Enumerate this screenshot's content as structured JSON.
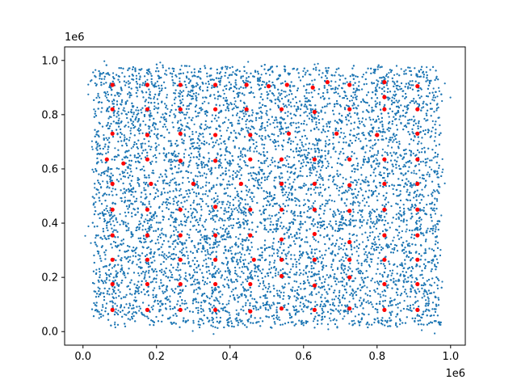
{
  "chart_data": {
    "type": "scatter",
    "title": "",
    "xlabel": "",
    "ylabel": "",
    "xlim": [
      -50000,
      1040000
    ],
    "ylim": [
      -50000,
      1050000
    ],
    "x_offset_text": "1e6",
    "y_offset_text": "1e6",
    "x_ticks": [
      0,
      200000,
      400000,
      600000,
      800000,
      1000000
    ],
    "x_tick_labels": [
      "0.0",
      "0.2",
      "0.4",
      "0.6",
      "0.8",
      "1.0"
    ],
    "y_ticks": [
      0,
      200000,
      400000,
      600000,
      800000,
      1000000
    ],
    "y_tick_labels": [
      "0.0",
      "0.2",
      "0.4",
      "0.6",
      "0.8",
      "1.0"
    ],
    "grid": false,
    "colors": {
      "points": "#1f77b4",
      "centers": "#ff0000"
    },
    "point_cloud": {
      "x_range": [
        30000,
        970000
      ],
      "y_range": [
        20000,
        980000
      ],
      "approx_count": 12000,
      "grid_cells": [
        10,
        10
      ]
    },
    "series": [
      {
        "x": [
          80000,
          175000,
          265000,
          360000,
          445000,
          505000,
          555000,
          625000,
          665000,
          725000,
          820000,
          910000,
          80000,
          175000,
          265000,
          360000,
          445000,
          540000,
          630000,
          725000,
          820000,
          910000,
          80000,
          175000,
          265000,
          360000,
          455000,
          560000,
          690000,
          800000,
          910000,
          65000,
          110000,
          175000,
          265000,
          360000,
          455000,
          540000,
          630000,
          725000,
          820000,
          910000,
          80000,
          185000,
          300000,
          430000,
          540000,
          630000,
          725000,
          820000,
          910000,
          80000,
          175000,
          265000,
          360000,
          455000,
          540000,
          630000,
          725000,
          820000,
          910000,
          80000,
          175000,
          265000,
          360000,
          455000,
          540000,
          630000,
          725000,
          820000,
          910000,
          80000,
          175000,
          265000,
          360000,
          465000,
          540000,
          630000,
          725000,
          820000,
          910000,
          80000,
          175000,
          265000,
          360000,
          455000,
          540000,
          630000,
          725000,
          820000,
          910000,
          80000,
          175000,
          265000,
          360000,
          455000,
          540000,
          630000,
          725000,
          820000,
          910000,
          820000
        ],
        "y": [
          910000,
          910000,
          910000,
          910000,
          910000,
          905000,
          910000,
          900000,
          920000,
          910000,
          920000,
          905000,
          820000,
          820000,
          820000,
          820000,
          820000,
          820000,
          810000,
          820000,
          820000,
          820000,
          730000,
          725000,
          730000,
          725000,
          725000,
          730000,
          730000,
          725000,
          730000,
          635000,
          620000,
          635000,
          630000,
          630000,
          635000,
          635000,
          635000,
          635000,
          635000,
          635000,
          545000,
          545000,
          545000,
          545000,
          545000,
          545000,
          540000,
          545000,
          545000,
          450000,
          450000,
          450000,
          460000,
          450000,
          450000,
          450000,
          445000,
          450000,
          450000,
          355000,
          355000,
          355000,
          355000,
          355000,
          340000,
          360000,
          330000,
          355000,
          355000,
          265000,
          265000,
          265000,
          265000,
          265000,
          265000,
          265000,
          265000,
          265000,
          265000,
          175000,
          175000,
          175000,
          175000,
          175000,
          205000,
          170000,
          200000,
          175000,
          175000,
          80000,
          80000,
          80000,
          80000,
          75000,
          85000,
          80000,
          85000,
          80000,
          80000,
          865000
        ]
      }
    ]
  }
}
